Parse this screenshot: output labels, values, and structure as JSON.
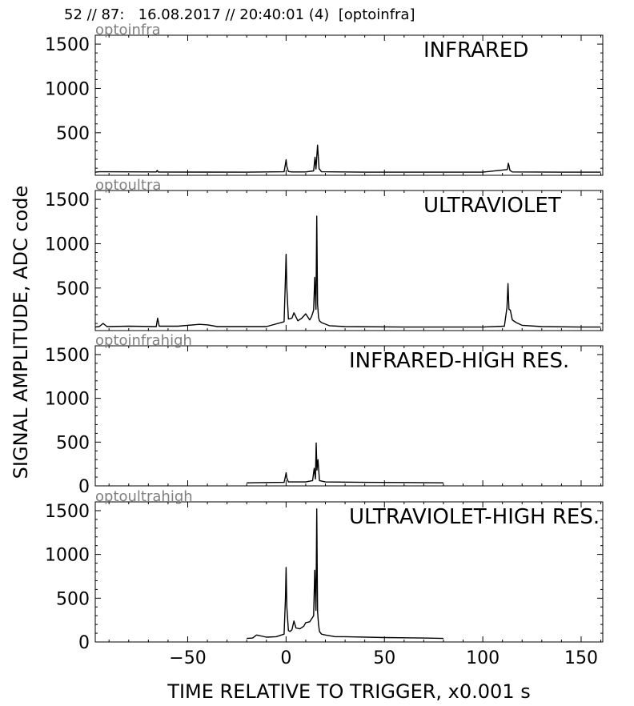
{
  "header": {
    "text": "52 // 87:   16.08.2017 // 20:40:01 (4)  [optoinfra]"
  },
  "ylabel": "SIGNAL AMPLITUDE,  ADC code",
  "xlabel": "TIME RELATIVE TO TRIGGER,   x0.001 s",
  "colors": {
    "trace": "#000000",
    "panel_tag": "#808080"
  },
  "chart_data": [
    {
      "type": "line",
      "tag": "optoinfra",
      "title": "INFRARED",
      "xlim": [
        -97,
        161
      ],
      "ylim": [
        20,
        1600
      ],
      "yticks": [
        500,
        1000,
        1500
      ],
      "yticklabels": [
        "500",
        "1000",
        "1500"
      ],
      "xticks": [
        -50,
        0,
        50,
        100,
        150
      ],
      "show_xticklabels": false,
      "grid": false,
      "series": [
        {
          "x": [
            -97,
            -95,
            -66,
            -65.5,
            -65,
            -20,
            -1,
            -0.3,
            0,
            0.4,
            1.2,
            3,
            10,
            14,
            14.7,
            15.2,
            16,
            16.8,
            18,
            40,
            100,
            112.5,
            113,
            113.3,
            113.8,
            115,
            140,
            160
          ],
          "y": [
            55,
            60,
            58,
            75,
            57,
            55,
            60,
            150,
            195,
            120,
            62,
            58,
            58,
            70,
            225,
            90,
            360,
            95,
            60,
            55,
            55,
            85,
            155,
            130,
            75,
            58,
            55,
            55
          ]
        }
      ]
    },
    {
      "type": "line",
      "tag": "optoultra",
      "title": "ULTRAVIOLET",
      "xlim": [
        -97,
        161
      ],
      "ylim": [
        20,
        1600
      ],
      "yticks": [
        500,
        1000,
        1500
      ],
      "yticklabels": [
        "500",
        "1000",
        "1500"
      ],
      "xticks": [
        -50,
        0,
        50,
        100,
        150
      ],
      "show_xticklabels": false,
      "grid": false,
      "series": [
        {
          "x": [
            -97,
            -95,
            -93,
            -91,
            -80,
            -66,
            -65.3,
            -64.5,
            -55,
            -44,
            -40,
            -35,
            -10,
            -1,
            -0.3,
            0,
            0.4,
            1.2,
            3,
            4,
            6,
            8,
            10,
            12,
            13,
            14,
            14.6,
            15.2,
            15.6,
            16,
            16.5,
            17,
            18,
            22,
            30,
            60,
            100,
            111,
            112.3,
            112.8,
            113.3,
            114,
            115,
            117,
            120,
            130,
            150,
            160
          ],
          "y": [
            60,
            65,
            100,
            65,
            70,
            65,
            160,
            70,
            70,
            90,
            85,
            65,
            65,
            120,
            620,
            880,
            500,
            150,
            160,
            220,
            130,
            160,
            210,
            140,
            180,
            250,
            620,
            260,
            1310,
            320,
            170,
            130,
            110,
            75,
            65,
            60,
            60,
            70,
            280,
            550,
            260,
            250,
            140,
            110,
            80,
            65,
            60,
            60
          ]
        }
      ]
    },
    {
      "type": "line",
      "tag": "optoinfrahigh",
      "title": "INFRARED-HIGH RES.",
      "xlim": [
        -97,
        161
      ],
      "ylim": [
        0,
        1600
      ],
      "yticks": [
        0,
        500,
        1000,
        1500
      ],
      "yticklabels": [
        "0",
        "500",
        "1000",
        "1500"
      ],
      "xticks": [
        -50,
        0,
        50,
        100,
        150
      ],
      "show_xticklabels": false,
      "grid": false,
      "series": [
        {
          "x": [
            -20,
            -10,
            -1,
            -0.3,
            0,
            0.4,
            1.2,
            5,
            10,
            13.5,
            14.3,
            14.9,
            15.3,
            15.7,
            16.2,
            17,
            20,
            40,
            60,
            80
          ],
          "y": [
            35,
            38,
            40,
            110,
            150,
            90,
            45,
            45,
            45,
            60,
            200,
            80,
            490,
            180,
            300,
            60,
            45,
            40,
            38,
            35
          ]
        }
      ]
    },
    {
      "type": "line",
      "tag": "optoultrahigh",
      "title": "ULTRAVIOLET-HIGH RES.",
      "xlim": [
        -97,
        161
      ],
      "ylim": [
        0,
        1600
      ],
      "yticks": [
        0,
        500,
        1000,
        1500
      ],
      "yticklabels": [
        "0",
        "500",
        "1000",
        "1500"
      ],
      "xticks": [
        -50,
        0,
        50,
        100,
        150
      ],
      "xticklabels": [
        "−50",
        "0",
        "50",
        "100",
        "150"
      ],
      "show_xticklabels": true,
      "grid": false,
      "series": [
        {
          "x": [
            -20,
            -17,
            -15,
            -10,
            -5,
            -1,
            -0.3,
            0,
            0.4,
            1.2,
            2,
            3,
            4,
            5,
            7,
            9,
            10,
            12,
            14,
            14.6,
            15.2,
            15.6,
            16,
            16.5,
            17,
            18,
            20,
            25,
            30,
            50,
            70,
            80
          ],
          "y": [
            40,
            45,
            80,
            55,
            60,
            90,
            500,
            850,
            400,
            130,
            120,
            140,
            240,
            160,
            150,
            180,
            220,
            230,
            300,
            820,
            360,
            1520,
            350,
            200,
            120,
            90,
            80,
            60,
            60,
            50,
            45,
            40
          ]
        }
      ]
    }
  ]
}
